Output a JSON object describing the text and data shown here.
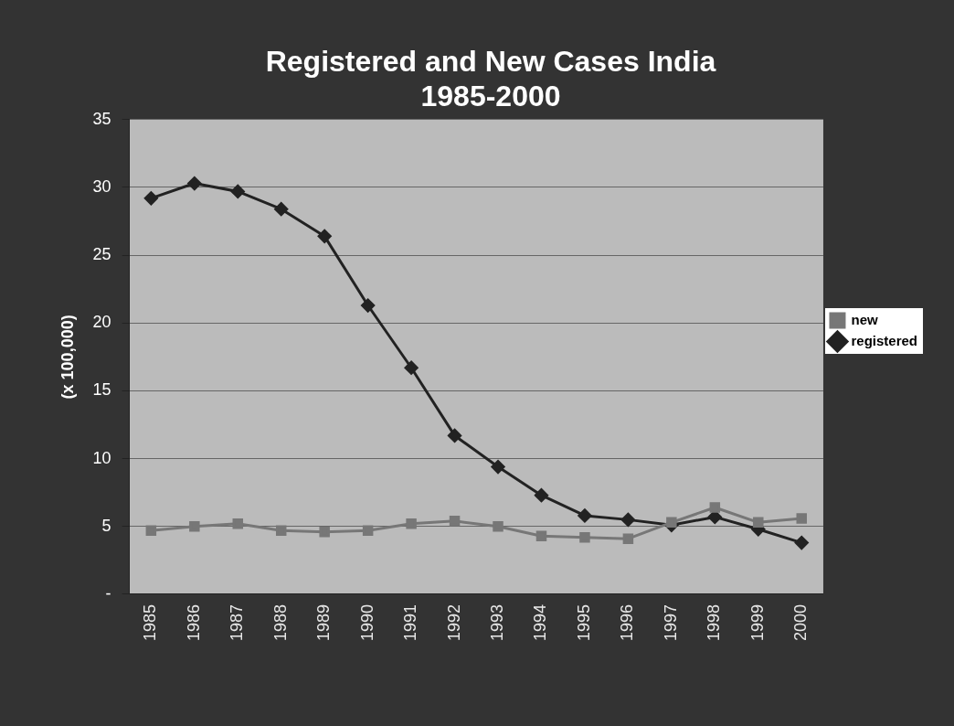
{
  "chart_data": {
    "type": "line",
    "title": "Registered and New Cases India\n1985-2000",
    "ylabel": "(x 100,000)",
    "categories": [
      "1985",
      "1986",
      "1987",
      "1988",
      "1989",
      "1990",
      "1991",
      "1992",
      "1993",
      "1994",
      "1995",
      "1996",
      "1997",
      "1998",
      "1999",
      "2000"
    ],
    "series": [
      {
        "name": "registered",
        "color": "#222222",
        "marker": "diamond",
        "values": [
          29.2,
          30.3,
          29.7,
          28.4,
          26.4,
          21.3,
          16.7,
          11.7,
          9.4,
          7.3,
          5.8,
          5.5,
          5.1,
          5.7,
          4.8,
          3.8
        ]
      },
      {
        "name": "new",
        "color": "#777777",
        "marker": "square",
        "values": [
          4.7,
          5.0,
          5.2,
          4.7,
          4.6,
          4.7,
          5.2,
          5.4,
          5.0,
          4.3,
          4.2,
          4.1,
          5.3,
          6.4,
          5.3,
          5.6
        ]
      }
    ],
    "ylim": [
      0,
      35
    ],
    "yticks": [
      {
        "value": 0,
        "label": "-"
      },
      5,
      10,
      15,
      20,
      25,
      30,
      35
    ],
    "grid": "y",
    "legend": "right"
  }
}
